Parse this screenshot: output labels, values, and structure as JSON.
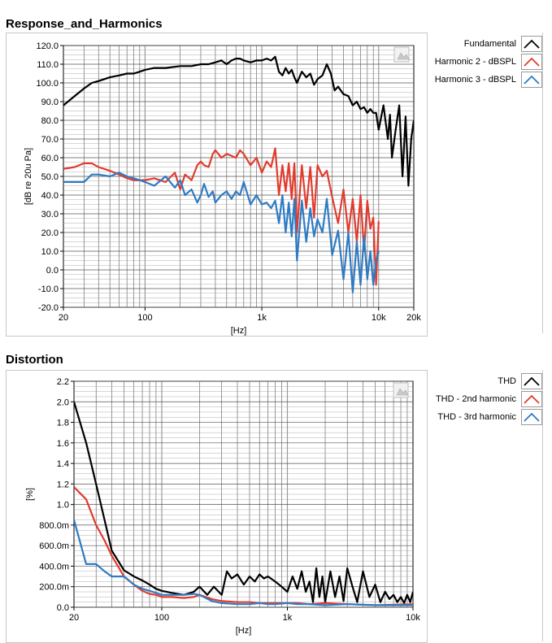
{
  "chart_data": [
    {
      "type": "line",
      "title": "Response_and_Harmonics",
      "xlabel": "[Hz]",
      "ylabel": "[dB re 20u Pa]",
      "xscale": "log",
      "xlim": [
        20,
        20000
      ],
      "ylim": [
        -20,
        120
      ],
      "x_ticks": [
        20,
        100,
        1000,
        10000,
        20000
      ],
      "x_tick_labels": [
        "20",
        "100",
        "1k",
        "10k",
        "20k"
      ],
      "y_ticks": [
        -20,
        -10,
        0,
        10,
        20,
        30,
        40,
        50,
        60,
        70,
        80,
        90,
        100,
        110,
        120
      ],
      "y_tick_labels": [
        "-20.0",
        "-10.0",
        "0.0",
        "10.0",
        "20.0",
        "30.0",
        "40.0",
        "50.0",
        "60.0",
        "70.0",
        "80.0",
        "90.0",
        "100.0",
        "110.0",
        "120.0"
      ],
      "grid": true,
      "legend_position": "right",
      "series": [
        {
          "name": "Fundamental",
          "color": "#000000",
          "x": [
            20,
            25,
            30,
            35,
            40,
            50,
            60,
            70,
            80,
            90,
            100,
            120,
            150,
            200,
            250,
            300,
            350,
            400,
            450,
            500,
            550,
            600,
            650,
            700,
            800,
            900,
            1000,
            1100,
            1200,
            1300,
            1400,
            1500,
            1600,
            1700,
            1800,
            1900,
            2000,
            2200,
            2400,
            2600,
            2800,
            3000,
            3300,
            3600,
            3900,
            4200,
            4500,
            5000,
            5500,
            6000,
            6500,
            7000,
            7500,
            8000,
            8500,
            9000,
            9500,
            10000,
            11000,
            12000,
            12500,
            13000,
            14000,
            15000,
            16000,
            17000,
            18000,
            19000,
            20000
          ],
          "y": [
            88,
            93,
            97,
            100,
            101,
            103,
            104,
            105,
            105,
            106,
            107,
            108,
            108,
            109,
            109,
            110,
            110,
            111,
            112,
            110,
            112,
            113,
            113,
            112,
            111,
            112,
            112,
            113,
            112,
            114,
            106,
            104,
            108,
            105,
            107,
            103,
            100,
            106,
            103,
            105,
            99,
            102,
            104,
            110,
            105,
            96,
            98,
            94,
            93,
            88,
            90,
            86,
            87,
            84,
            86,
            84,
            84,
            75,
            88,
            70,
            83,
            60,
            75,
            88,
            50,
            82,
            45,
            70,
            80
          ]
        },
        {
          "name": "Harmonic 2 - dBSPL",
          "color": "#e23b2e",
          "x": [
            20,
            25,
            30,
            35,
            40,
            50,
            60,
            70,
            80,
            90,
            100,
            120,
            150,
            180,
            200,
            220,
            250,
            280,
            300,
            320,
            350,
            380,
            400,
            450,
            500,
            550,
            600,
            650,
            700,
            800,
            900,
            1000,
            1100,
            1200,
            1300,
            1400,
            1500,
            1600,
            1700,
            1800,
            1900,
            2000,
            2200,
            2400,
            2600,
            2800,
            3000,
            3300,
            3600,
            4000,
            4500,
            5000,
            5500,
            6000,
            6500,
            7000,
            7500,
            8000,
            8500,
            9000,
            9500,
            10000
          ],
          "y": [
            54,
            55,
            57,
            57,
            55,
            53,
            51,
            49,
            48,
            48,
            48,
            49,
            47,
            52,
            43,
            51,
            48,
            56,
            58,
            56,
            55,
            62,
            64,
            60,
            62,
            61,
            60,
            64,
            62,
            56,
            60,
            52,
            58,
            55,
            65,
            40,
            56,
            42,
            57,
            38,
            57,
            20,
            56,
            33,
            55,
            28,
            56,
            50,
            53,
            39,
            25,
            43,
            20,
            38,
            15,
            40,
            10,
            37,
            22,
            28,
            -8,
            26
          ]
        },
        {
          "name": "Harmonic 3 - dBSPL",
          "color": "#2e7bc4",
          "x": [
            20,
            25,
            30,
            35,
            40,
            50,
            60,
            70,
            80,
            90,
            100,
            120,
            150,
            180,
            200,
            220,
            250,
            280,
            300,
            320,
            350,
            380,
            400,
            450,
            500,
            550,
            600,
            650,
            700,
            800,
            900,
            1000,
            1100,
            1200,
            1300,
            1400,
            1500,
            1600,
            1700,
            1800,
            1900,
            2000,
            2200,
            2400,
            2600,
            2800,
            3000,
            3300,
            3600,
            4000,
            4500,
            5000,
            5500,
            6000,
            6500,
            7000,
            7500,
            8000,
            8500,
            9000,
            9500,
            10000
          ],
          "y": [
            47,
            47,
            47,
            51,
            51,
            50,
            52,
            50,
            49,
            48,
            47,
            45,
            50,
            44,
            48,
            40,
            43,
            36,
            40,
            46,
            39,
            42,
            36,
            40,
            42,
            38,
            42,
            40,
            47,
            35,
            40,
            35,
            36,
            33,
            37,
            25,
            40,
            20,
            36,
            18,
            38,
            5,
            37,
            15,
            33,
            18,
            27,
            20,
            38,
            8,
            21,
            -5,
            20,
            -12,
            15,
            -8,
            18,
            -5,
            10,
            -8,
            5,
            10
          ]
        }
      ]
    },
    {
      "type": "line",
      "title": "Distortion",
      "xlabel": "[Hz]",
      "ylabel": "[%]",
      "xscale": "log",
      "xlim": [
        20,
        10000
      ],
      "ylim": [
        0,
        2.2
      ],
      "x_ticks": [
        20,
        100,
        1000,
        10000
      ],
      "x_tick_labels": [
        "20",
        "100",
        "1k",
        "10k"
      ],
      "y_ticks": [
        0,
        0.2,
        0.4,
        0.6,
        0.8,
        1.0,
        1.2,
        1.4,
        1.6,
        1.8,
        2.0,
        2.2
      ],
      "y_tick_labels": [
        "0.0",
        "200.0m",
        "400.0m",
        "600.0m",
        "800.0m",
        "1.0",
        "1.2",
        "1.4",
        "1.6",
        "1.8",
        "2.0",
        "2.2"
      ],
      "grid": true,
      "legend_position": "right",
      "series": [
        {
          "name": "THD",
          "color": "#000000",
          "x": [
            20,
            25,
            30,
            35,
            40,
            45,
            50,
            60,
            70,
            80,
            90,
            100,
            120,
            150,
            180,
            200,
            230,
            260,
            300,
            330,
            360,
            400,
            450,
            500,
            550,
            600,
            650,
            700,
            800,
            900,
            1000,
            1100,
            1200,
            1300,
            1400,
            1500,
            1600,
            1700,
            1800,
            1900,
            2000,
            2200,
            2400,
            2600,
            2800,
            3000,
            3300,
            3600,
            4000,
            4500,
            5000,
            5500,
            6000,
            6500,
            7000,
            7500,
            8000,
            8500,
            9000,
            9500,
            10000
          ],
          "y": [
            2.0,
            1.6,
            1.2,
            0.85,
            0.55,
            0.45,
            0.36,
            0.3,
            0.26,
            0.22,
            0.18,
            0.16,
            0.14,
            0.12,
            0.15,
            0.2,
            0.12,
            0.2,
            0.12,
            0.35,
            0.28,
            0.32,
            0.22,
            0.3,
            0.25,
            0.32,
            0.28,
            0.3,
            0.25,
            0.2,
            0.15,
            0.3,
            0.18,
            0.35,
            0.15,
            0.25,
            0.05,
            0.38,
            0.1,
            0.3,
            0.05,
            0.35,
            0.1,
            0.3,
            0.06,
            0.38,
            0.2,
            0.05,
            0.35,
            0.1,
            0.22,
            0.05,
            0.15,
            0.08,
            0.12,
            0.05,
            0.1,
            0.04,
            0.12,
            0.05,
            0.15
          ]
        },
        {
          "name": "THD - 2nd harmonic",
          "color": "#e23b2e",
          "x": [
            20,
            25,
            30,
            35,
            40,
            50,
            60,
            70,
            80,
            90,
            100,
            120,
            150,
            180,
            200,
            250,
            300,
            400,
            500,
            600,
            700,
            800,
            1000,
            1200,
            1500,
            2000,
            3000,
            5000,
            10000
          ],
          "y": [
            1.17,
            1.05,
            0.8,
            0.65,
            0.5,
            0.3,
            0.22,
            0.16,
            0.13,
            0.12,
            0.1,
            0.1,
            0.09,
            0.1,
            0.12,
            0.08,
            0.06,
            0.05,
            0.05,
            0.04,
            0.04,
            0.04,
            0.04,
            0.04,
            0.03,
            0.04,
            0.03,
            0.02,
            0.03
          ]
        },
        {
          "name": "THD - 3rd harmonic",
          "color": "#2e7bc4",
          "x": [
            20,
            25,
            30,
            35,
            40,
            50,
            60,
            70,
            80,
            90,
            100,
            120,
            150,
            180,
            200,
            250,
            300,
            400,
            500,
            600,
            700,
            800,
            1000,
            1200,
            1500,
            2000,
            3000,
            5000,
            10000
          ],
          "y": [
            0.85,
            0.42,
            0.42,
            0.35,
            0.3,
            0.3,
            0.22,
            0.18,
            0.16,
            0.14,
            0.12,
            0.12,
            0.12,
            0.13,
            0.12,
            0.06,
            0.04,
            0.03,
            0.03,
            0.04,
            0.03,
            0.03,
            0.04,
            0.03,
            0.03,
            0.02,
            0.03,
            0.02,
            0.02
          ]
        }
      ]
    }
  ]
}
